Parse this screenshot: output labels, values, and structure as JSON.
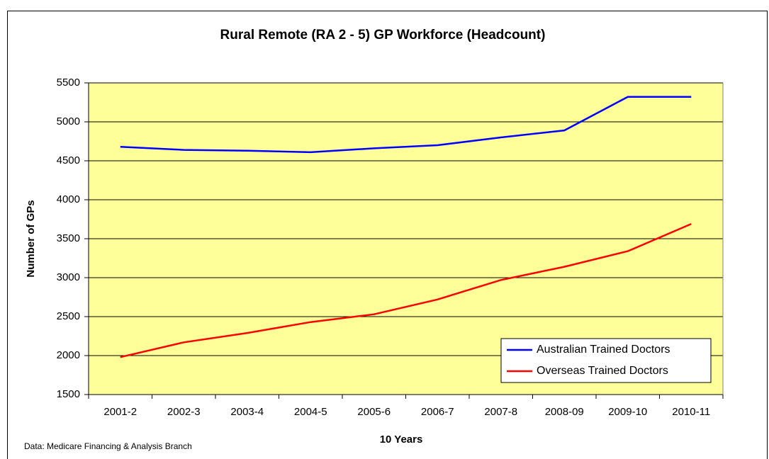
{
  "chart_data": {
    "type": "line",
    "title": "Rural Remote (RA 2 - 5) GP Workforce (Headcount)",
    "x_label": "10 Years",
    "y_label": "Number of GPs",
    "source": "Data: Medicare Financing & Analysis Branch",
    "categories": [
      "2001-2",
      "2002-3",
      "2003-4",
      "2004-5",
      "2005-6",
      "2006-7",
      "2007-8",
      "2008-09",
      "2009-10",
      "2010-11"
    ],
    "series": [
      {
        "name": "Australian Trained Doctors",
        "color": "#0000ff",
        "values": [
          4680,
          4640,
          4630,
          4610,
          4660,
          4700,
          4800,
          4890,
          5320,
          5320
        ]
      },
      {
        "name": "Overseas Trained Doctors",
        "color": "#ff0000",
        "values": [
          1980,
          2170,
          2290,
          2430,
          2530,
          2720,
          2970,
          3140,
          3340,
          3690
        ]
      }
    ],
    "ylim": [
      1500,
      5500
    ],
    "yticks": [
      1500,
      2000,
      2500,
      3000,
      3500,
      4000,
      4500,
      5000,
      5500
    ],
    "grid": true,
    "legend": "lower right",
    "plot_background": "#ffff99"
  }
}
